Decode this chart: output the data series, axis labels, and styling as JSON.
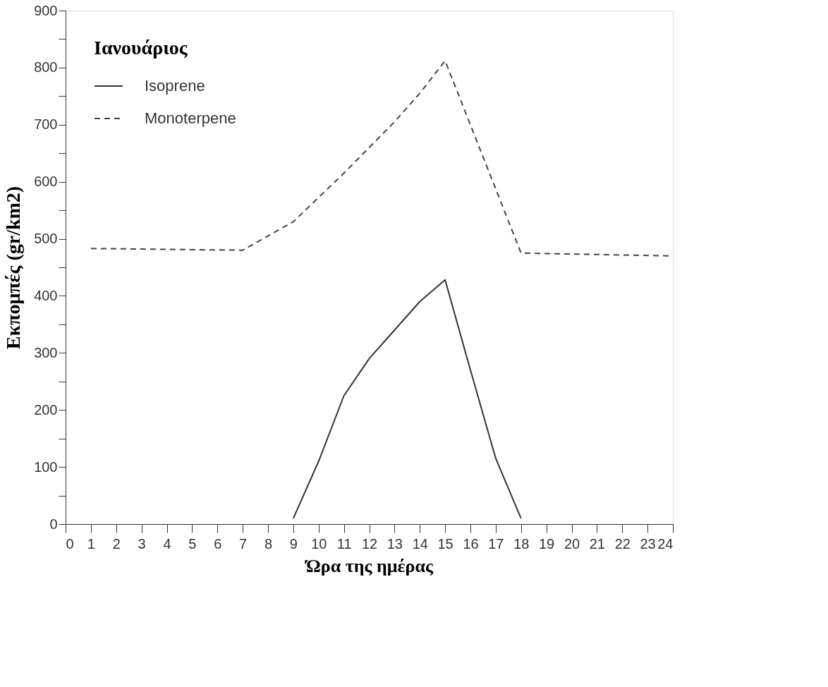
{
  "chart_data": {
    "type": "line",
    "xlabel": "Ώρα της ημέρας",
    "ylabel": "Εκπομπές (gr/km2)",
    "legend_title": "Ιανουάριος",
    "legend": "top left",
    "grid": false,
    "marker": "none",
    "xlim": [
      0,
      24
    ],
    "xticks": [
      0,
      1,
      2,
      3,
      4,
      5,
      6,
      7,
      8,
      9,
      10,
      11,
      12,
      13,
      14,
      15,
      16,
      17,
      18,
      19,
      20,
      21,
      22,
      23,
      24
    ],
    "ylim": [
      0,
      900
    ],
    "yticks": [
      0,
      {
        "value": 50,
        "label": null
      },
      100,
      {
        "value": 150,
        "label": null
      },
      200,
      {
        "value": 250,
        "label": null
      },
      300,
      {
        "value": 350,
        "label": null
      },
      400,
      {
        "value": 450,
        "label": null
      },
      500,
      {
        "value": 550,
        "label": null
      },
      600,
      {
        "value": 650,
        "label": null
      },
      700,
      {
        "value": 750,
        "label": null
      },
      800,
      {
        "value": 850,
        "label": null
      },
      900
    ],
    "series": [
      {
        "name": "Isoprene",
        "color": "#333333",
        "line_style": "solid",
        "x": [
          9,
          10,
          11,
          12,
          13,
          14,
          15,
          16,
          17,
          18
        ],
        "values": [
          10,
          110,
          225,
          290,
          340,
          390,
          428,
          270,
          115,
          10
        ]
      },
      {
        "name": "Monoterpene",
        "color": "#444444",
        "line_style": "dashed",
        "x": [
          1,
          7,
          9,
          11,
          13,
          14,
          15,
          18,
          24
        ],
        "values": [
          483,
          480,
          530,
          615,
          705,
          755,
          812,
          475,
          470
        ]
      }
    ]
  }
}
